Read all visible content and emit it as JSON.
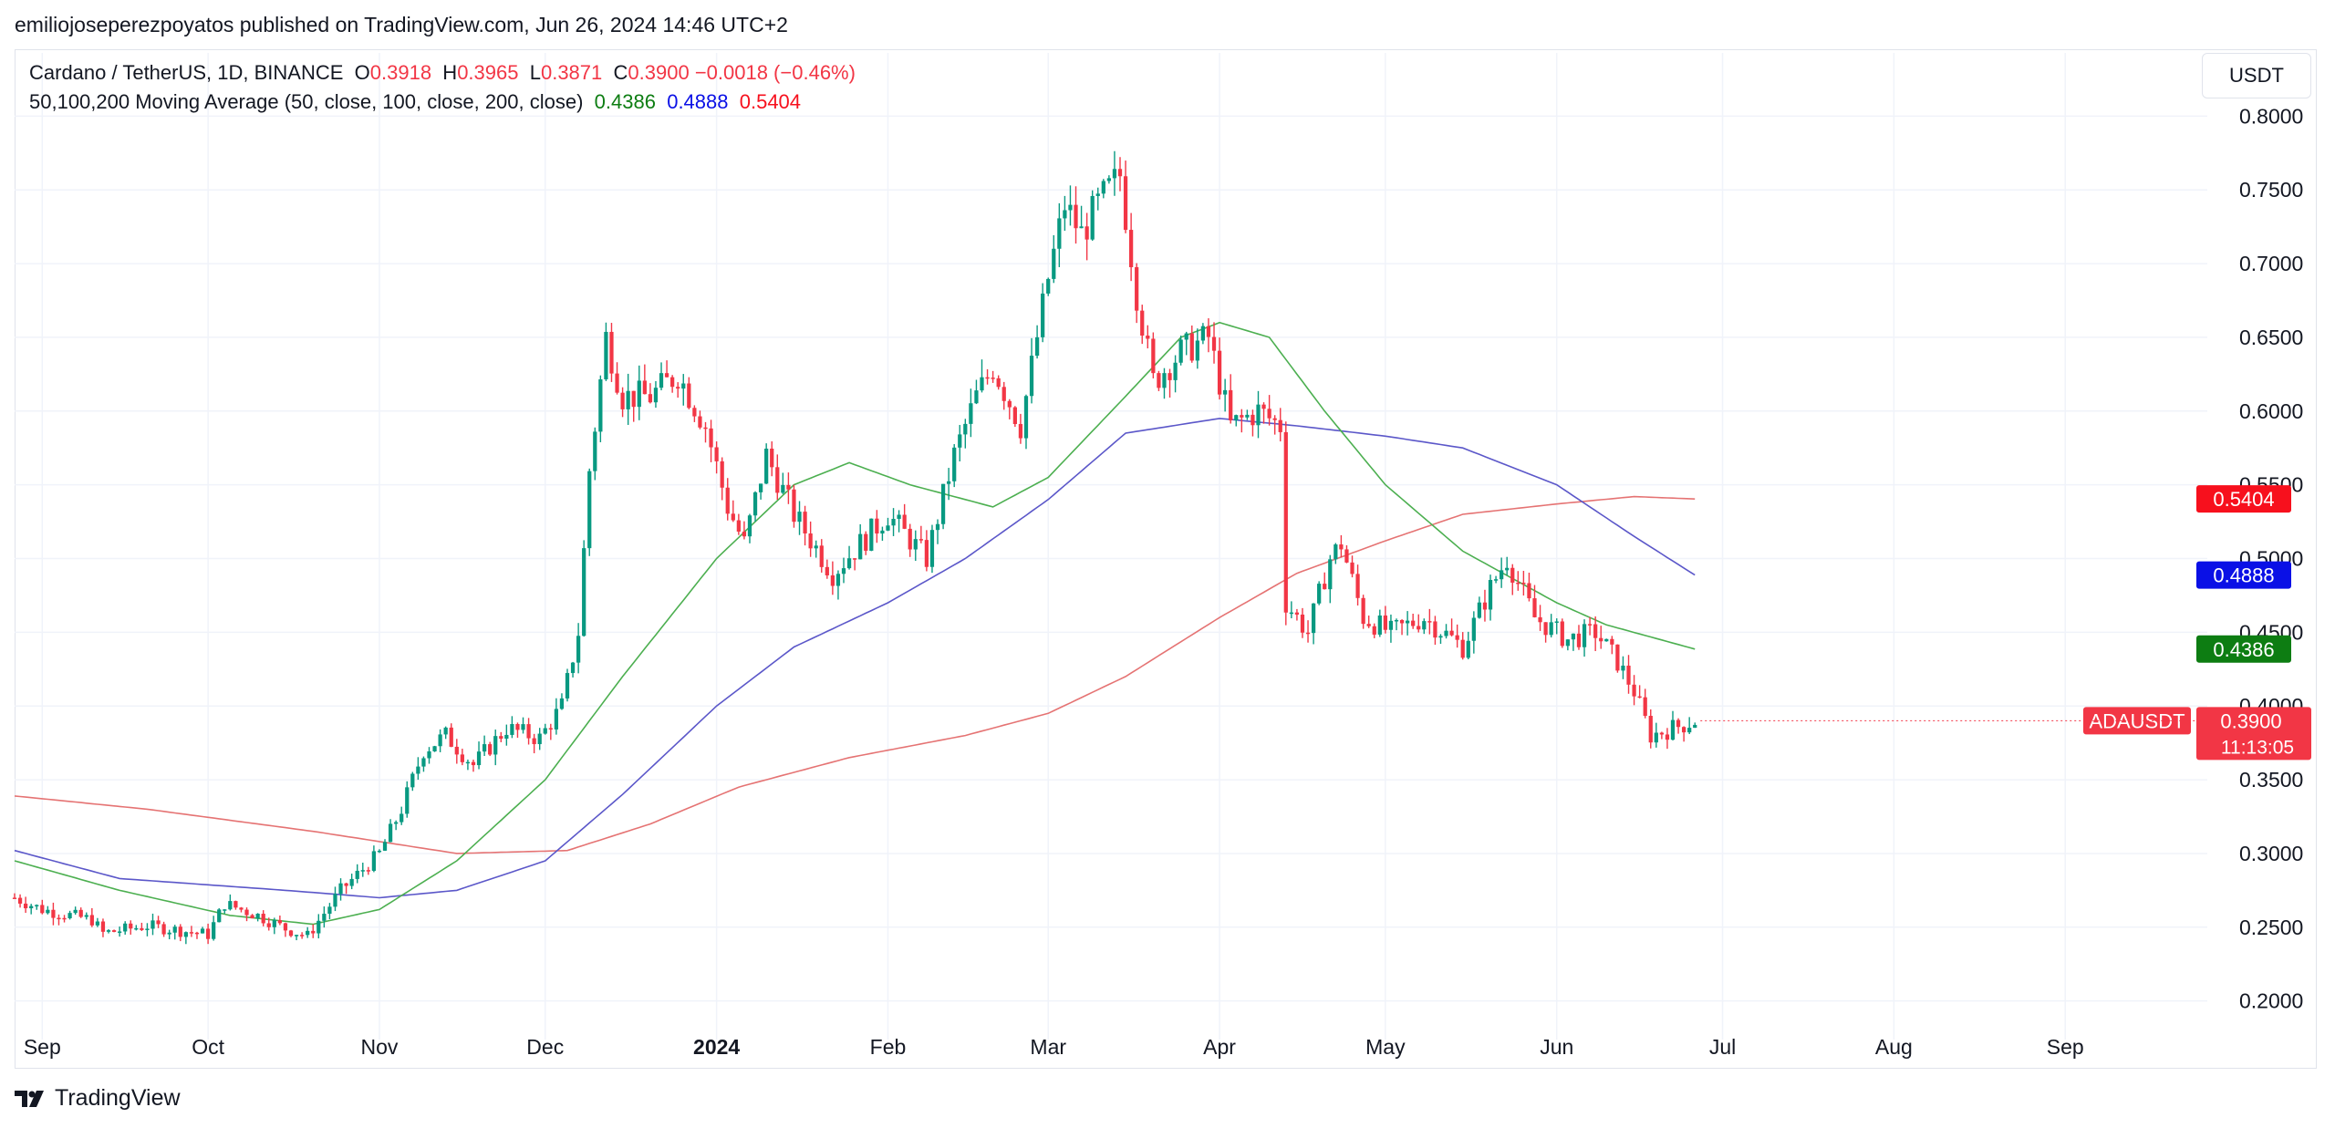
{
  "header": {
    "published": "emiliojoseperezpoyatos published on TradingView.com, Jun 26, 2024 14:46 UTC+2"
  },
  "legend": {
    "symbol": "Cardano / TetherUS, 1D, BINANCE",
    "o_label": "O",
    "o_value": "0.3918",
    "h_label": "H",
    "h_value": "0.3965",
    "l_label": "L",
    "l_value": "0.3871",
    "c_label": "C",
    "c_value": "0.3900",
    "change": "−0.0018 (−0.46%)",
    "ma_label": "50,100,200 Moving Average (50, close, 100, close, 200, close)",
    "ma50": "0.4386",
    "ma100": "0.4888",
    "ma200": "0.5404"
  },
  "currency_button": "USDT",
  "brand": "TradingView",
  "colors": {
    "up": "#089981",
    "down": "#f23645",
    "ma50": "#4caf50",
    "ma100": "#5b57c9",
    "ma200": "#e57373",
    "grid": "#f0f3fa"
  },
  "chart_data": {
    "type": "candlestick",
    "symbol": "ADAUSDT",
    "x_ticks": [
      "Sep",
      "Oct",
      "Nov",
      "Dec",
      "2024",
      "Feb",
      "Mar",
      "Apr",
      "May",
      "Jun",
      "Jul",
      "Aug",
      "Sep"
    ],
    "y_ticks": [
      "0.8000",
      "0.7500",
      "0.7000",
      "0.6500",
      "0.6000",
      "0.5500",
      "0.5000",
      "0.4500",
      "0.4000",
      "0.3500",
      "0.3000",
      "0.2500",
      "0.2000"
    ],
    "ylim": [
      0.18,
      0.82
    ],
    "x_range": [
      "2023-08-27",
      "2024-09-30"
    ],
    "last_price": {
      "symbol_label": "ADAUSDT",
      "value": "0.3900",
      "countdown": "11:13:05"
    },
    "ma_labels": [
      {
        "name": "MA200",
        "value": "0.5404",
        "color": "#f7101d"
      },
      {
        "name": "MA100",
        "value": "0.4888",
        "color": "#0a10e6"
      },
      {
        "name": "MA50",
        "value": "0.4386",
        "color": "#0d7d12"
      }
    ],
    "price_anchors": [
      [
        "2023-08-27",
        0.27
      ],
      [
        "2023-09-01",
        0.262
      ],
      [
        "2023-09-10",
        0.255
      ],
      [
        "2023-09-12",
        0.246
      ],
      [
        "2023-09-20",
        0.251
      ],
      [
        "2023-10-01",
        0.245
      ],
      [
        "2023-10-04",
        0.266
      ],
      [
        "2023-10-10",
        0.258
      ],
      [
        "2023-10-15",
        0.249
      ],
      [
        "2023-10-19",
        0.244
      ],
      [
        "2023-10-25",
        0.275
      ],
      [
        "2023-11-01",
        0.3
      ],
      [
        "2023-11-05",
        0.33
      ],
      [
        "2023-11-09",
        0.37
      ],
      [
        "2023-11-13",
        0.38
      ],
      [
        "2023-11-18",
        0.36
      ],
      [
        "2023-11-24",
        0.385
      ],
      [
        "2023-11-30",
        0.378
      ],
      [
        "2023-12-04",
        0.4
      ],
      [
        "2023-12-07",
        0.45
      ],
      [
        "2023-12-09",
        0.56
      ],
      [
        "2023-12-12",
        0.65
      ],
      [
        "2023-12-15",
        0.61
      ],
      [
        "2023-12-20",
        0.61
      ],
      [
        "2023-12-25",
        0.625
      ],
      [
        "2023-12-30",
        0.59
      ],
      [
        "2024-01-03",
        0.535
      ],
      [
        "2024-01-06",
        0.51
      ],
      [
        "2024-01-10",
        0.57
      ],
      [
        "2024-01-15",
        0.53
      ],
      [
        "2024-01-22",
        0.49
      ],
      [
        "2024-01-27",
        0.51
      ],
      [
        "2024-02-01",
        0.53
      ],
      [
        "2024-02-08",
        0.5
      ],
      [
        "2024-02-13",
        0.57
      ],
      [
        "2024-02-17",
        0.61
      ],
      [
        "2024-02-20",
        0.63
      ],
      [
        "2024-02-25",
        0.59
      ],
      [
        "2024-03-01",
        0.69
      ],
      [
        "2024-03-04",
        0.74
      ],
      [
        "2024-03-07",
        0.72
      ],
      [
        "2024-03-10",
        0.74
      ],
      [
        "2024-03-14",
        0.76
      ],
      [
        "2024-03-17",
        0.68
      ],
      [
        "2024-03-20",
        0.62
      ],
      [
        "2024-03-25",
        0.64
      ],
      [
        "2024-03-30",
        0.65
      ],
      [
        "2024-04-03",
        0.59
      ],
      [
        "2024-04-08",
        0.6
      ],
      [
        "2024-04-12",
        0.59
      ],
      [
        "2024-04-13",
        0.47
      ],
      [
        "2024-04-17",
        0.45
      ],
      [
        "2024-04-21",
        0.5
      ],
      [
        "2024-04-23",
        0.51
      ],
      [
        "2024-04-27",
        0.46
      ],
      [
        "2024-05-02",
        0.45
      ],
      [
        "2024-05-08",
        0.46
      ],
      [
        "2024-05-15",
        0.44
      ],
      [
        "2024-05-20",
        0.48
      ],
      [
        "2024-05-23",
        0.5
      ],
      [
        "2024-05-28",
        0.46
      ],
      [
        "2024-06-03",
        0.445
      ],
      [
        "2024-06-08",
        0.45
      ],
      [
        "2024-06-12",
        0.43
      ],
      [
        "2024-06-15",
        0.41
      ],
      [
        "2024-06-18",
        0.38
      ],
      [
        "2024-06-22",
        0.385
      ],
      [
        "2024-06-26",
        0.39
      ]
    ],
    "ma50_anchors": [
      [
        "2023-08-27",
        0.295
      ],
      [
        "2023-09-15",
        0.275
      ],
      [
        "2023-10-05",
        0.258
      ],
      [
        "2023-10-20",
        0.252
      ],
      [
        "2023-11-01",
        0.262
      ],
      [
        "2023-11-15",
        0.295
      ],
      [
        "2023-12-01",
        0.35
      ],
      [
        "2023-12-15",
        0.42
      ],
      [
        "2024-01-01",
        0.5
      ],
      [
        "2024-01-15",
        0.55
      ],
      [
        "2024-01-25",
        0.565
      ],
      [
        "2024-02-05",
        0.55
      ],
      [
        "2024-02-20",
        0.535
      ],
      [
        "2024-03-01",
        0.555
      ],
      [
        "2024-03-15",
        0.61
      ],
      [
        "2024-03-25",
        0.65
      ],
      [
        "2024-04-01",
        0.66
      ],
      [
        "2024-04-10",
        0.65
      ],
      [
        "2024-04-20",
        0.6
      ],
      [
        "2024-05-01",
        0.55
      ],
      [
        "2024-05-15",
        0.505
      ],
      [
        "2024-06-01",
        0.47
      ],
      [
        "2024-06-10",
        0.455
      ],
      [
        "2024-06-26",
        0.4386
      ]
    ],
    "ma100_anchors": [
      [
        "2023-08-27",
        0.302
      ],
      [
        "2023-09-15",
        0.283
      ],
      [
        "2023-10-15",
        0.275
      ],
      [
        "2023-11-01",
        0.27
      ],
      [
        "2023-11-15",
        0.275
      ],
      [
        "2023-12-01",
        0.295
      ],
      [
        "2023-12-15",
        0.34
      ],
      [
        "2024-01-01",
        0.4
      ],
      [
        "2024-01-15",
        0.44
      ],
      [
        "2024-02-01",
        0.47
      ],
      [
        "2024-02-15",
        0.5
      ],
      [
        "2024-03-01",
        0.54
      ],
      [
        "2024-03-15",
        0.585
      ],
      [
        "2024-04-01",
        0.595
      ],
      [
        "2024-04-15",
        0.59
      ],
      [
        "2024-05-01",
        0.583
      ],
      [
        "2024-05-15",
        0.575
      ],
      [
        "2024-06-01",
        0.55
      ],
      [
        "2024-06-15",
        0.515
      ],
      [
        "2024-06-26",
        0.4888
      ]
    ],
    "ma200_anchors": [
      [
        "2023-08-27",
        0.339
      ],
      [
        "2023-09-20",
        0.33
      ],
      [
        "2023-10-20",
        0.315
      ],
      [
        "2023-11-15",
        0.3
      ],
      [
        "2023-12-05",
        0.302
      ],
      [
        "2023-12-20",
        0.32
      ],
      [
        "2024-01-05",
        0.345
      ],
      [
        "2024-01-25",
        0.365
      ],
      [
        "2024-02-15",
        0.38
      ],
      [
        "2024-03-01",
        0.395
      ],
      [
        "2024-03-15",
        0.42
      ],
      [
        "2024-04-01",
        0.46
      ],
      [
        "2024-04-15",
        0.49
      ],
      [
        "2024-05-01",
        0.512
      ],
      [
        "2024-05-15",
        0.53
      ],
      [
        "2024-06-01",
        0.537
      ],
      [
        "2024-06-15",
        0.542
      ],
      [
        "2024-06-26",
        0.5404
      ]
    ]
  }
}
